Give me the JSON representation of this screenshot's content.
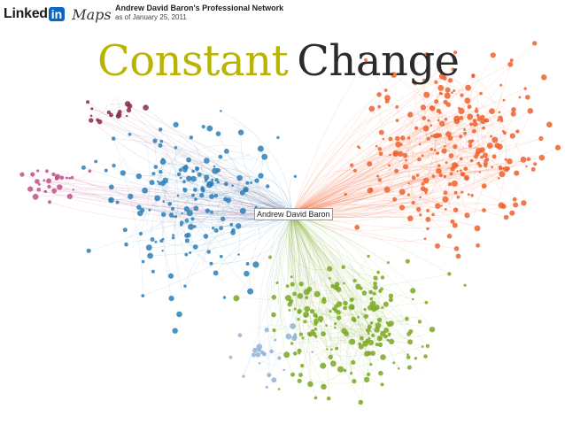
{
  "header": {
    "brand_linked": "Linked",
    "brand_in": "in",
    "brand_maps": "Maps",
    "network_title": "Andrew David Baron's Professional Network",
    "as_of": "as of January 25, 2011"
  },
  "headline": {
    "word1": "Constant",
    "word2": "Change"
  },
  "center_node": {
    "label": "Andrew David Baron"
  },
  "colors": {
    "orange_cluster": "#f0602e",
    "blue_cluster": "#2d7fb8",
    "green_cluster": "#7aa822",
    "pink_cluster": "#c0508a",
    "maroon_cluster": "#8a2a48",
    "light_blue_cluster": "#8fb3d6",
    "headline_accent": "#b8b400",
    "headline_dark": "#2b2b2b",
    "brand_blue": "#0a66c2"
  },
  "clusters": [
    {
      "name": "orange",
      "color_key": "orange_cluster"
    },
    {
      "name": "blue",
      "color_key": "blue_cluster"
    },
    {
      "name": "green",
      "color_key": "green_cluster"
    },
    {
      "name": "pink",
      "color_key": "pink_cluster"
    },
    {
      "name": "maroon",
      "color_key": "maroon_cluster"
    },
    {
      "name": "light-blue",
      "color_key": "light_blue_cluster"
    }
  ]
}
